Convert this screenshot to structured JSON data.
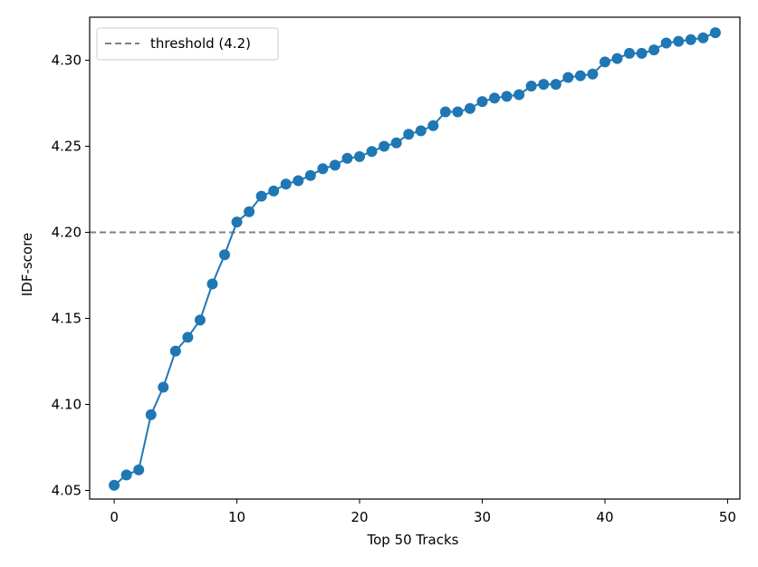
{
  "chart_data": {
    "type": "line",
    "title": "",
    "xlabel": "Top 50 Tracks",
    "ylabel": "IDF-score",
    "xlim": [
      -2,
      51
    ],
    "ylim": [
      4.045,
      4.325
    ],
    "xticks": [
      0,
      10,
      20,
      30,
      40,
      50
    ],
    "xtick_labels": [
      "0",
      "10",
      "20",
      "30",
      "40",
      "50"
    ],
    "yticks": [
      4.05,
      4.1,
      4.15,
      4.2,
      4.25,
      4.3
    ],
    "ytick_labels": [
      "4.05",
      "4.10",
      "4.15",
      "4.20",
      "4.25",
      "4.30"
    ],
    "grid": false,
    "legend_position": "top-left",
    "series": [
      {
        "color": "#1f77b4",
        "marker": "circle",
        "x": [
          0,
          1,
          2,
          3,
          4,
          5,
          6,
          7,
          8,
          9,
          10,
          11,
          12,
          13,
          14,
          15,
          16,
          17,
          18,
          19,
          20,
          21,
          22,
          23,
          24,
          25,
          26,
          27,
          28,
          29,
          30,
          31,
          32,
          33,
          34,
          35,
          36,
          37,
          38,
          39,
          40,
          41,
          42,
          43,
          44,
          45,
          46,
          47,
          48,
          49
        ],
        "y": [
          4.053,
          4.059,
          4.062,
          4.094,
          4.11,
          4.131,
          4.139,
          4.149,
          4.17,
          4.187,
          4.206,
          4.212,
          4.221,
          4.224,
          4.228,
          4.23,
          4.233,
          4.237,
          4.239,
          4.243,
          4.244,
          4.247,
          4.25,
          4.252,
          4.257,
          4.259,
          4.262,
          4.27,
          4.27,
          4.272,
          4.276,
          4.278,
          4.279,
          4.28,
          4.285,
          4.286,
          4.286,
          4.29,
          4.291,
          4.292,
          4.299,
          4.301,
          4.304,
          4.304,
          4.306,
          4.31,
          4.311,
          4.312,
          4.313,
          4.316
        ]
      }
    ],
    "reference_lines": [
      {
        "label": "threshold (4.2)",
        "orientation": "horizontal",
        "y": 4.2,
        "style": "dashed",
        "color": "#808080"
      }
    ]
  }
}
